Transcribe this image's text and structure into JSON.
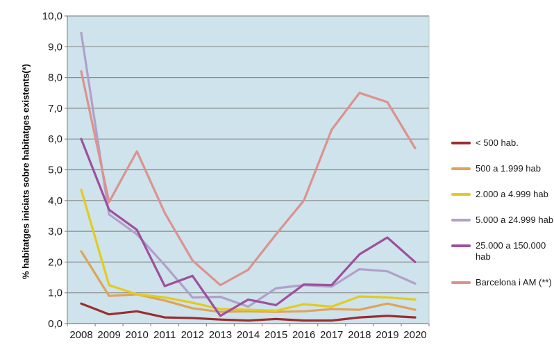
{
  "chart": {
    "y_axis_title": "% habitatges iniciats sobre habitatges existents(*)"
  },
  "chart_data": {
    "type": "line",
    "title": "",
    "xlabel": "",
    "ylabel": "% habitatges iniciats sobre habitatges existents(*)",
    "categories": [
      "2008",
      "2009",
      "2010",
      "2011",
      "2012",
      "2013",
      "2014",
      "2015",
      "2016",
      "2017",
      "2018",
      "2019",
      "2020"
    ],
    "series": [
      {
        "name": "< 500 hab.",
        "color": "#9A2D2E",
        "values": [
          0.65,
          0.3,
          0.4,
          0.2,
          0.18,
          0.13,
          0.1,
          0.15,
          0.1,
          0.1,
          0.2,
          0.25,
          0.2
        ]
      },
      {
        "name": "500 a 1.999 hab",
        "color": "#DFA35A",
        "values": [
          2.35,
          0.9,
          0.95,
          0.75,
          0.5,
          0.38,
          0.4,
          0.38,
          0.4,
          0.47,
          0.45,
          0.65,
          0.45
        ]
      },
      {
        "name": "2.000 a 4.999 hab",
        "color": "#E2CB1E",
        "values": [
          4.35,
          1.25,
          0.95,
          0.85,
          0.68,
          0.47,
          0.45,
          0.42,
          0.63,
          0.55,
          0.88,
          0.85,
          0.78
        ]
      },
      {
        "name": "5.000 a 24.999 hab",
        "color": "#B1A0CA",
        "values": [
          9.45,
          3.55,
          2.9,
          1.9,
          0.85,
          0.87,
          0.55,
          1.15,
          1.25,
          1.2,
          1.77,
          1.7,
          1.3
        ]
      },
      {
        "name": "25.000 a 150.000 hab",
        "color": "#9E4F9D",
        "values": [
          6.0,
          3.7,
          3.05,
          1.22,
          1.55,
          0.25,
          0.78,
          0.6,
          1.27,
          1.25,
          2.25,
          2.8,
          2.0
        ]
      },
      {
        "name": "Barcelona i AM (**)",
        "color": "#DD928C",
        "values": [
          8.2,
          3.95,
          5.6,
          3.6,
          2.05,
          1.25,
          1.75,
          2.9,
          4.0,
          6.3,
          7.5,
          7.2,
          5.7
        ]
      }
    ],
    "ylim": [
      0,
      10
    ],
    "y_tick_step": 1,
    "y_tick_labels": [
      "0,0",
      "1,0",
      "2,0",
      "3,0",
      "4,0",
      "5,0",
      "6,0",
      "7,0",
      "8,0",
      "9,0",
      "10,0"
    ],
    "grid": true,
    "legend_position": "right",
    "colors": {
      "plot_background": "#CEE3EB",
      "gridline": "#8A8A8A",
      "axis_text": "#1a1a1a"
    }
  }
}
